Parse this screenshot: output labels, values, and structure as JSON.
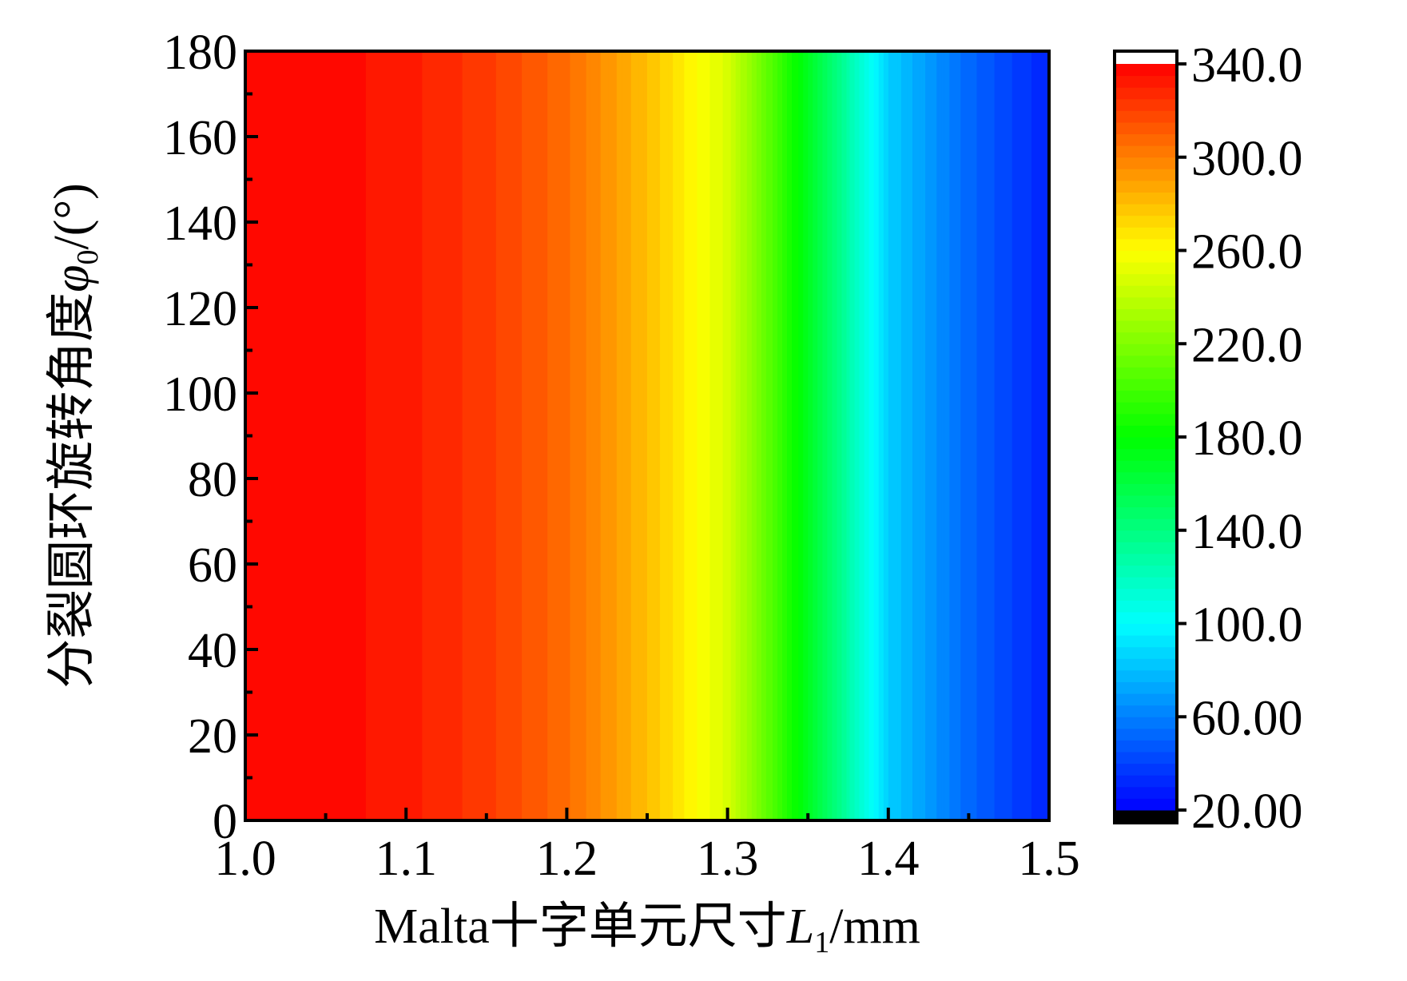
{
  "chart_data": {
    "type": "heatmap",
    "subtype": "filled-contour",
    "xlabel": "Malta十字单元尺寸L1/mm",
    "xlabel_parts": {
      "prefix": "Malta十字单元尺寸",
      "var": "L",
      "sub": "1",
      "suffix": "/mm"
    },
    "ylabel": "分裂圆环旋转角度φ0/(°)",
    "ylabel_parts": {
      "prefix": "分裂圆环旋转角度",
      "var": "φ",
      "sub": "0",
      "suffix": "/(°)"
    },
    "xlim": [
      1.0,
      1.5
    ],
    "ylim": [
      0,
      180
    ],
    "x_ticks": [
      "1.0",
      "1.1",
      "1.2",
      "1.3",
      "1.4",
      "1.5"
    ],
    "y_ticks": [
      "0",
      "20",
      "40",
      "60",
      "80",
      "100",
      "120",
      "140",
      "160",
      "180"
    ],
    "colorbar": {
      "range": [
        20,
        340
      ],
      "ticks": [
        "340.0",
        "300.0",
        "260.0",
        "220.0",
        "180.0",
        "140.0",
        "100.0",
        "60.00",
        "20.00"
      ],
      "tick_values": [
        340,
        300,
        260,
        220,
        180,
        140,
        100,
        60,
        20
      ],
      "levels": 64,
      "colormap": "rainbow (blue-cyan-green-yellow-red)",
      "over_color": "#ffffff",
      "under_color": "#000000"
    },
    "x": [
      1.0,
      1.05,
      1.1,
      1.15,
      1.2,
      1.25,
      1.3,
      1.35,
      1.4,
      1.45,
      1.5
    ],
    "values_vs_x": [
      340,
      338,
      332,
      322,
      306,
      280,
      248,
      170,
      85,
      52,
      30
    ],
    "note_independent_of_y": true
  },
  "colors": {
    "background": "#ffffff",
    "axis": "#000000"
  }
}
